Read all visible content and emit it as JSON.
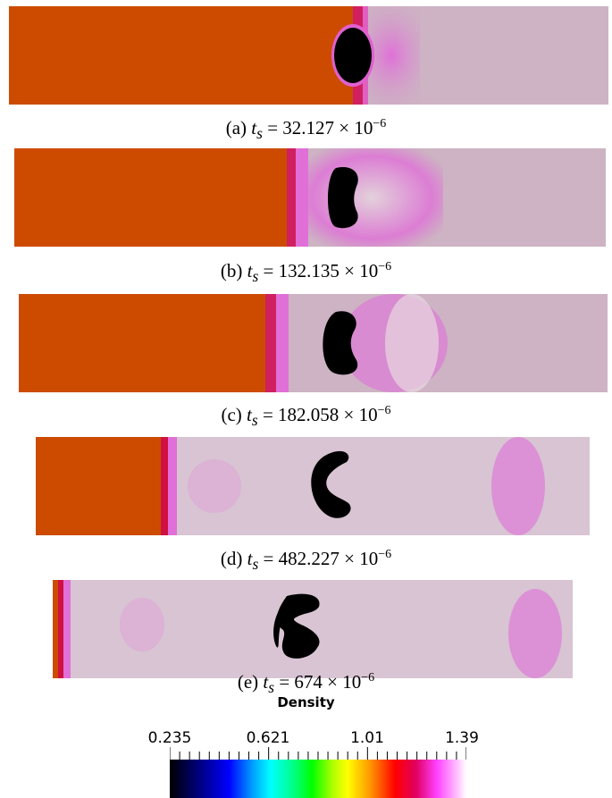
{
  "figure": {
    "colors": {
      "dense": "#cc4b00",
      "light": "#cdb3c3",
      "magenta": "#e080d8",
      "bubble": "#000000"
    },
    "panels": [
      {
        "label": "(a)",
        "time_value": "32.127",
        "exponent": "−6"
      },
      {
        "label": "(b)",
        "time_value": "132.135",
        "exponent": "−6"
      },
      {
        "label": "(c)",
        "time_value": "182.058",
        "exponent": "−6"
      },
      {
        "label": "(d)",
        "time_value": "482.227",
        "exponent": "−6"
      },
      {
        "label": "(e)",
        "time_value": "674",
        "exponent": "−6"
      }
    ],
    "caption_var": "t",
    "caption_sub": "s",
    "times_sign": "×",
    "ten": "10",
    "equals": "="
  },
  "colorbar": {
    "title": "Density",
    "ticks": [
      "0.235",
      "0.621",
      "1.01",
      "1.39"
    ],
    "min": 0.235,
    "max": 1.39
  }
}
